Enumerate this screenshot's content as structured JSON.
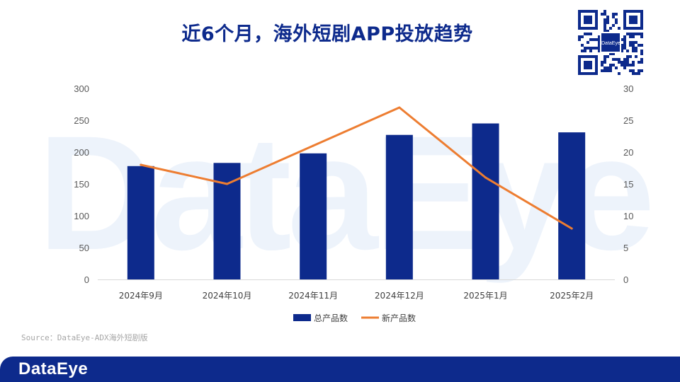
{
  "title": "近6个月，海外短剧APP投放趋势",
  "qr": {
    "logo_text": "DataEye"
  },
  "source": "Source：DataEye-ADX海外短剧版",
  "footer": {
    "logo": "DataEye"
  },
  "watermark": "DataEye",
  "colors": {
    "bar": "#0d2a8c",
    "line": "#ed7d31",
    "title": "#0d2a8c",
    "footer": "#0d2a8c"
  },
  "chart_data": {
    "type": "bar",
    "title": "近6个月，海外短剧APP投放趋势",
    "categories": [
      "2024年9月",
      "2024年10月",
      "2024年11月",
      "2024年12月",
      "2025年1月",
      "2025年2月"
    ],
    "series": [
      {
        "name": "总产品数",
        "type": "bar",
        "axis": "left",
        "values": [
          178,
          183,
          198,
          227,
          245,
          231
        ]
      },
      {
        "name": "新产品数",
        "type": "line",
        "axis": "right",
        "values": [
          18,
          15,
          21,
          27,
          16,
          8
        ]
      }
    ],
    "y_left": {
      "min": 0,
      "max": 300,
      "ticks": [
        0,
        50,
        100,
        150,
        200,
        250,
        300
      ]
    },
    "y_right": {
      "min": 0,
      "max": 30,
      "ticks": [
        0,
        5,
        10,
        15,
        20,
        25,
        30
      ]
    },
    "legend": "bottom-center",
    "grid": false
  }
}
